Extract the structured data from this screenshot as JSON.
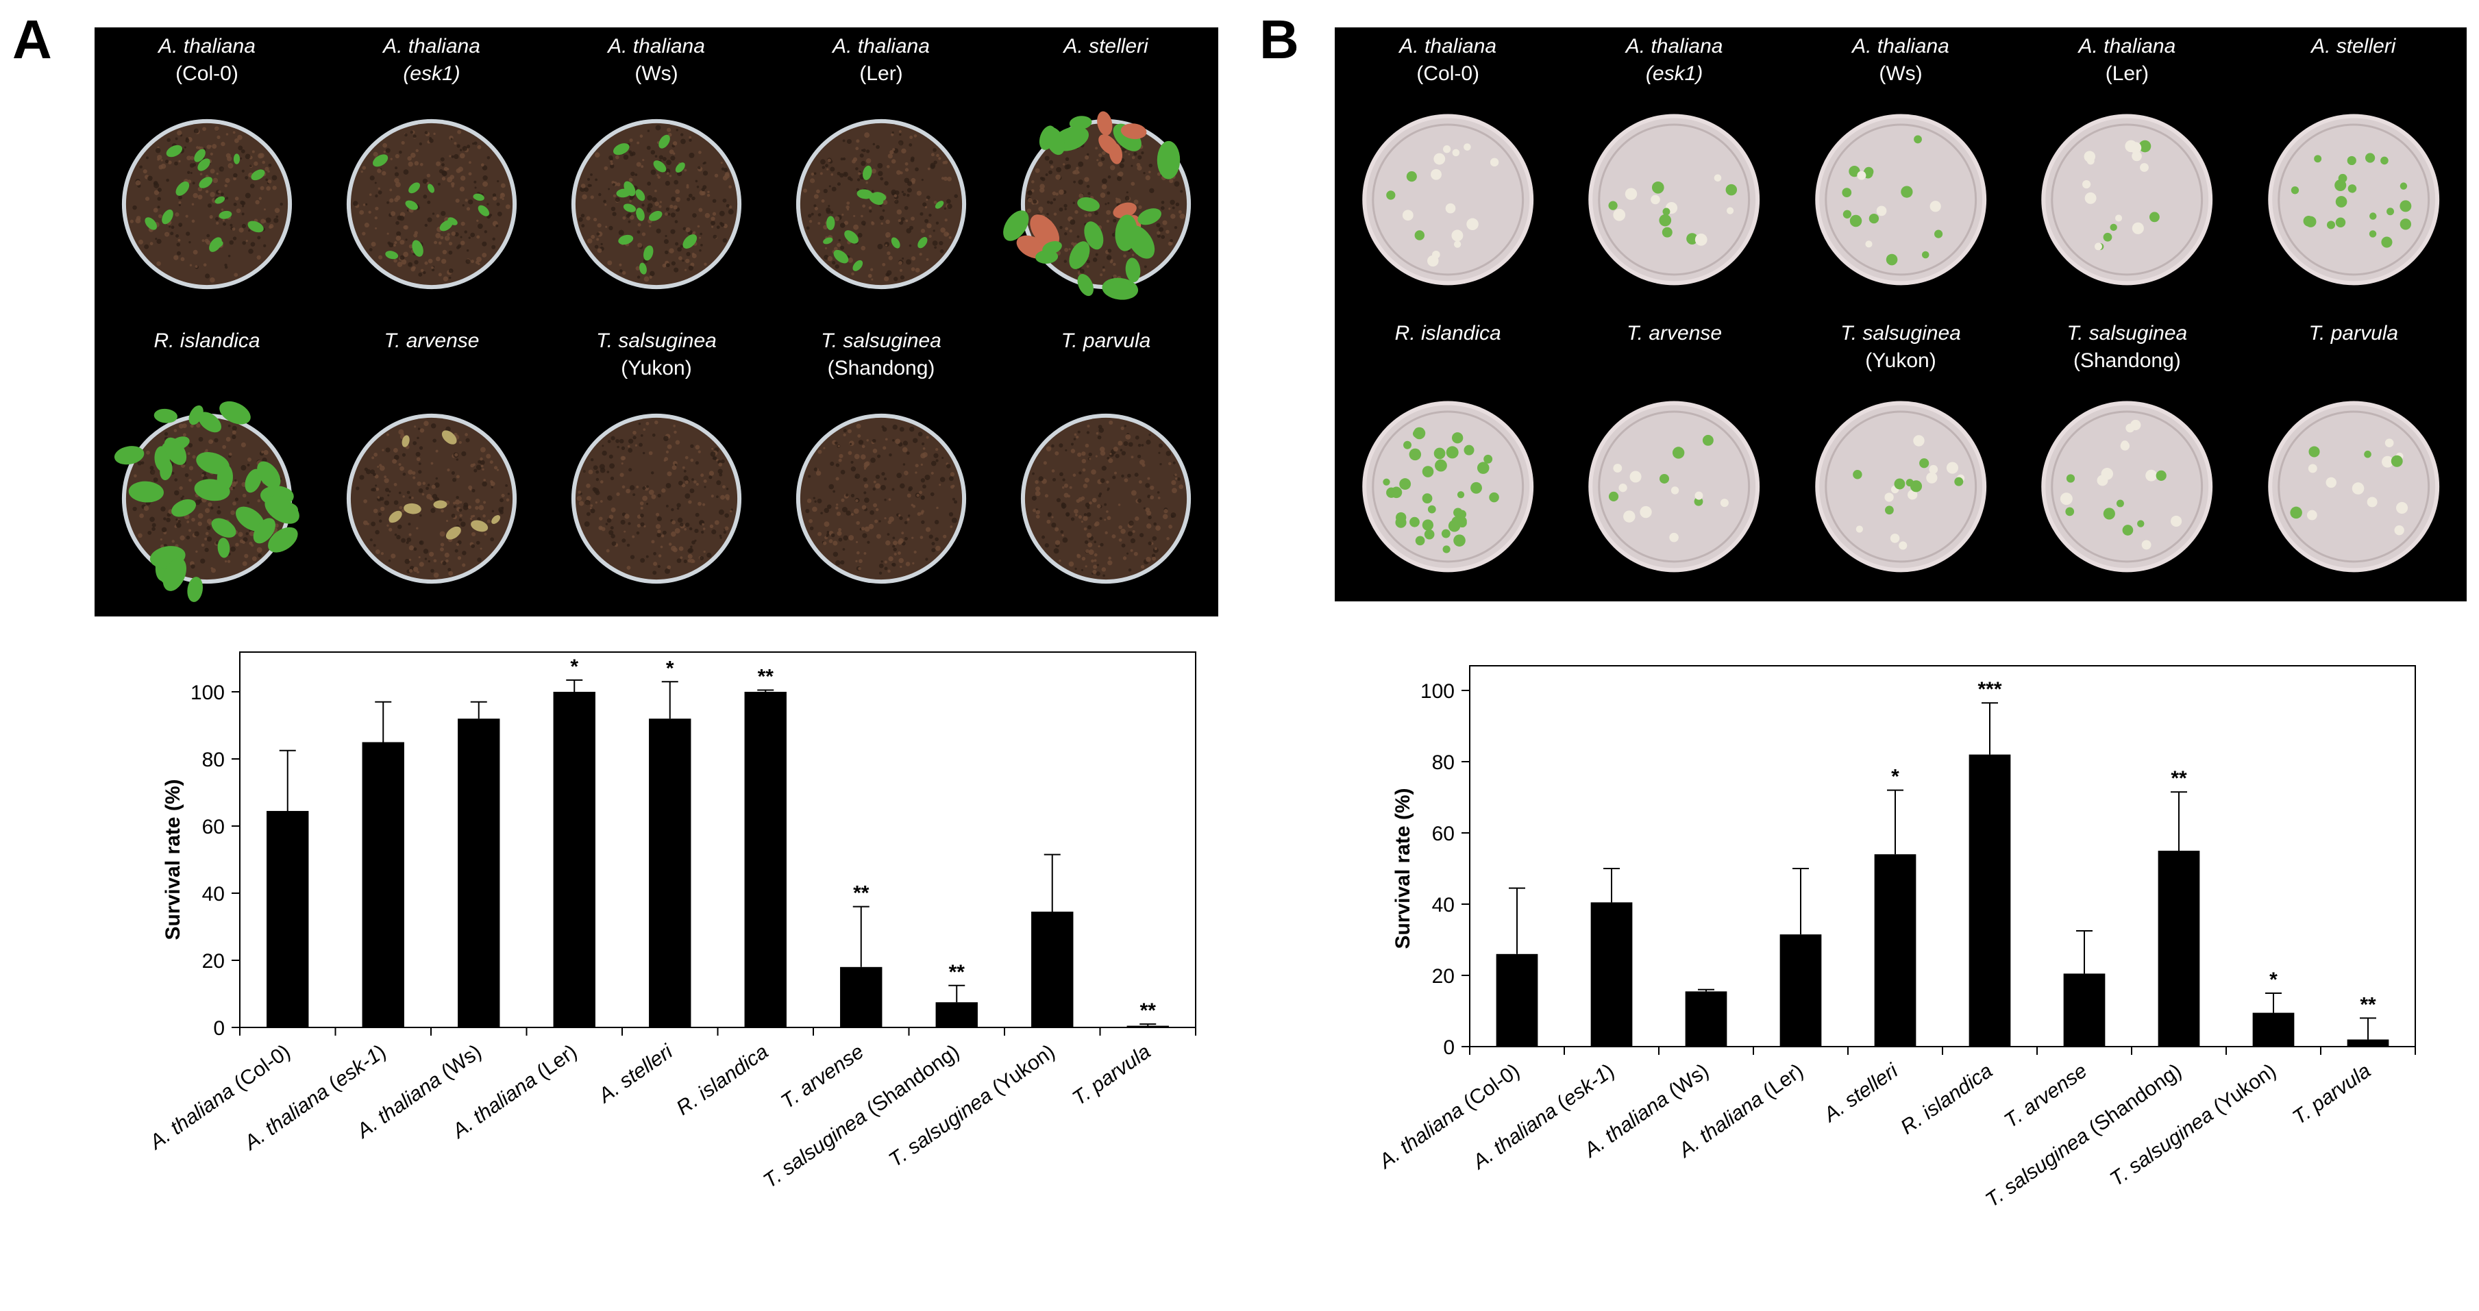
{
  "panels": [
    {
      "letter": "A",
      "photo_labels": [
        {
          "species": "A. thaliana",
          "sub": "(Col-0)"
        },
        {
          "species": "A. thaliana",
          "sub": "(esk1)"
        },
        {
          "species": "A. thaliana",
          "sub": "(Ws)"
        },
        {
          "species": "A. thaliana",
          "sub": "(Ler)"
        },
        {
          "species": "A. stelleri",
          "sub": ""
        },
        {
          "species": "R. islandica",
          "sub": ""
        },
        {
          "species": "T. arvense",
          "sub": ""
        },
        {
          "species": "T. salsuginea",
          "sub": "(Yukon)"
        },
        {
          "species": "T. salsuginea",
          "sub": "(Shandong)"
        },
        {
          "species": "T. parvula",
          "sub": ""
        }
      ]
    },
    {
      "letter": "B",
      "photo_labels": [
        {
          "species": "A. thaliana",
          "sub": "(Col-0)"
        },
        {
          "species": "A. thaliana",
          "sub": "(esk1)"
        },
        {
          "species": "A. thaliana",
          "sub": "(Ws)"
        },
        {
          "species": "A. thaliana",
          "sub": "(Ler)"
        },
        {
          "species": "A. stelleri",
          "sub": ""
        },
        {
          "species": "R. islandica",
          "sub": ""
        },
        {
          "species": "T. arvense",
          "sub": ""
        },
        {
          "species": "T. salsuginea",
          "sub": "(Yukon)"
        },
        {
          "species": "T. salsuginea",
          "sub": "(Shandong)"
        },
        {
          "species": "T. parvula",
          "sub": ""
        }
      ]
    }
  ],
  "chart_data": [
    {
      "type": "bar",
      "panel": "A",
      "ylabel": "Survival rate (%)",
      "ylim": [
        0,
        100
      ],
      "yticks": [
        0,
        20,
        40,
        60,
        80,
        100
      ],
      "categories": [
        "A. thaliana (Col-0)",
        "A. thaliana (esk-1)",
        "A. thaliana (Ws)",
        "A. thaliana (Ler)",
        "A. stelleri",
        "R. islandica",
        "T. arvense",
        "T. salsuginea (Shandong)",
        "T. salsuginea (Yukon)",
        "T. parvula"
      ],
      "values": [
        64.5,
        85,
        92,
        100,
        92,
        100,
        18,
        7.5,
        34.5,
        0.5
      ],
      "errors": [
        18,
        12,
        5,
        3.5,
        11,
        0.5,
        18,
        5,
        17,
        0.5
      ],
      "significance": [
        "",
        "",
        "",
        "*",
        "*",
        "**",
        "**",
        "**",
        "",
        "**"
      ],
      "bar_color": "#000000"
    },
    {
      "type": "bar",
      "panel": "B",
      "ylabel": "Survival rate (%)",
      "ylim": [
        0,
        100
      ],
      "yticks": [
        0,
        20,
        40,
        60,
        80,
        100
      ],
      "categories": [
        "A. thaliana (Col-0)",
        "A. thaliana (esk-1)",
        "A. thaliana (Ws)",
        "A. thaliana (Ler)",
        "A. stelleri",
        "R. islandica",
        "T. arvense",
        "T. salsuginea (Shandong)",
        "T. salsuginea (Yukon)",
        "T. parvula"
      ],
      "values": [
        26,
        40.5,
        15.5,
        31.5,
        54,
        82,
        20.5,
        55,
        9.5,
        2
      ],
      "errors": [
        18.5,
        9.5,
        0.5,
        18.5,
        18,
        14.5,
        12,
        16.5,
        5.5,
        6
      ],
      "significance": [
        "",
        "",
        "",
        "",
        "*",
        "***",
        "",
        "**",
        "*",
        "**"
      ],
      "bar_color": "#000000"
    }
  ]
}
